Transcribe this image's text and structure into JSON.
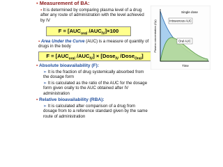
{
  "slide": {
    "heading": "Measurement of BA:",
    "intro": "It is determined by comparing plasma level of a drug after any route of administration with the level achieved by IV",
    "formula_1": [
      {
        "text": "F = [AUC"
      },
      {
        "text": "oral",
        "sub": true
      },
      {
        "text": " /AUC"
      },
      {
        "text": "IV",
        "sub": true
      },
      {
        "text": "]×100"
      }
    ],
    "auc": {
      "term": "Area Under the Curve",
      "definition": " (AUC) is a measure of quantity of drugs in the body"
    },
    "formula_2": [
      {
        "text": "F = [AUC"
      },
      {
        "text": "oral",
        "sub": true
      },
      {
        "text": " /AUC"
      },
      {
        "text": "IV",
        "sub": true
      },
      {
        "text": "] × [Dose"
      },
      {
        "text": "IV",
        "sub": true
      },
      {
        "text": " /Dose"
      },
      {
        "text": "Oral",
        "sub": true
      },
      {
        "text": "]"
      }
    ],
    "absolute": {
      "heading": "Absolute bioavailability (F):",
      "points": [
        "It is the fraction of drug systemically absorbed from the dosage form",
        "It is calculated as the ratio of the AUC for the dosage form given orally to the AUC obtained after IV administration"
      ]
    },
    "relative": {
      "heading": "Relative bioavailability (RBA):",
      "points": [
        "It is calculated after comparison of a drug from dosage from to a reference standard given by the same route of administration"
      ]
    },
    "graph": {
      "title": "Single dose",
      "iv_label": "Intravenous AUC",
      "oral_label": "Oral AUC",
      "y_label": "Plasma concentration (Cp)",
      "x_label": "Time"
    }
  }
}
